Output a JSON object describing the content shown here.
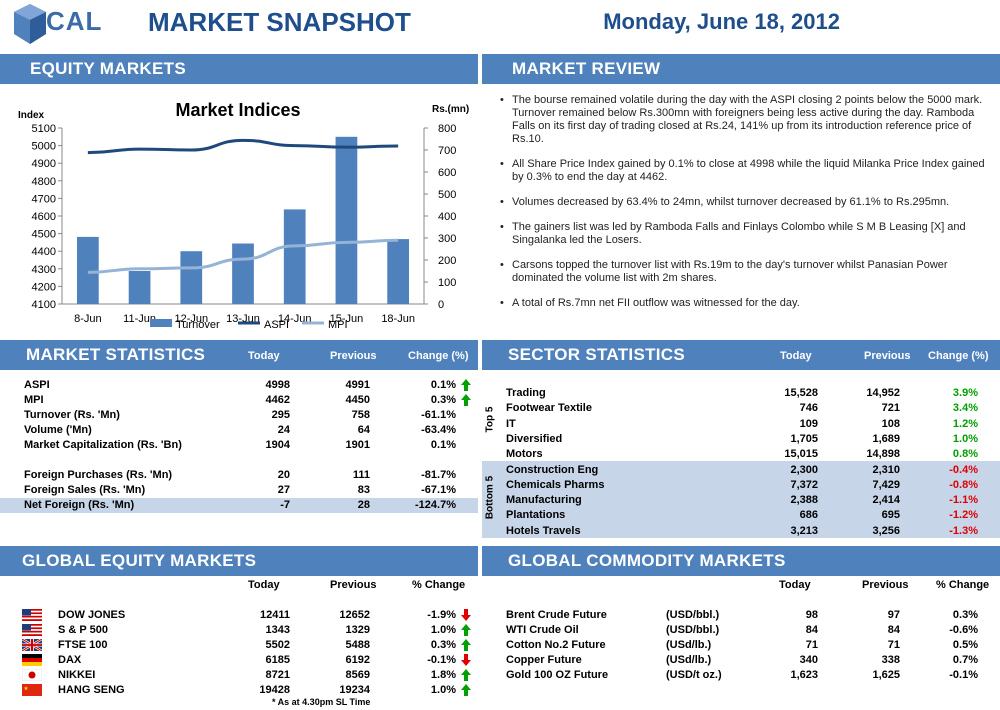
{
  "header": {
    "logo_text": "CAL",
    "title": "MARKET SNAPSHOT",
    "date": "Monday, June 18, 2012"
  },
  "equity_markets": {
    "title": "EQUITY MARKETS"
  },
  "chart_data": {
    "type": "bar",
    "title": "Market Indices",
    "left_axis_label": "Index",
    "right_axis_label": "Rs.(mn)",
    "categories": [
      "8-Jun",
      "11-Jun",
      "12-Jun",
      "13-Jun",
      "14-Jun",
      "15-Jun",
      "18-Jun"
    ],
    "series": [
      {
        "name": "Turnover",
        "type": "bar",
        "axis": "right",
        "color": "#4f81bd",
        "values": [
          305,
          150,
          240,
          275,
          430,
          760,
          295
        ]
      },
      {
        "name": "ASPI",
        "type": "line",
        "axis": "left",
        "color": "#1f497d",
        "values": [
          4960,
          4980,
          4975,
          5030,
          5000,
          4991,
          4998
        ]
      },
      {
        "name": "MPI",
        "type": "line",
        "axis": "left",
        "color": "#95b3d7",
        "values": [
          4280,
          4300,
          4305,
          4355,
          4430,
          4450,
          4462
        ]
      }
    ],
    "left_ylim": [
      4100,
      5100
    ],
    "left_ticks": [
      "4100",
      "4200",
      "4300",
      "4400",
      "4500",
      "4600",
      "4700",
      "4800",
      "4900",
      "5000",
      "5100"
    ],
    "right_ylim": [
      0,
      800
    ],
    "right_ticks": [
      "0",
      "100",
      "200",
      "300",
      "400",
      "500",
      "600",
      "700",
      "800"
    ],
    "legend_position": "bottom",
    "grid": false
  },
  "market_review": {
    "title": "MARKET REVIEW",
    "bullets": [
      "The bourse remained volatile during the day with the ASPI closing 2 points below the 5000 mark. Turnover remained below Rs.300mn with foreigners being less active during the day. Ramboda Falls on its first day of trading closed at Rs.24, 141% up from its introduction reference price of Rs.10.",
      "All Share Price Index gained by 0.1% to close at 4998 while the liquid Milanka Price Index gained by 0.3% to end the day at 4462.",
      "Volumes decreased by 63.4% to 24mn, whilst turnover decreased by 61.1% to Rs.295mn.",
      "The gainers list was led by Ramboda Falls and Finlays Colombo while S M B Leasing [X] and Singalanka led the Losers.",
      "Carsons topped the turnover list with Rs.19m to the day's turnover whilst Panasian Power dominated the volume list with 2m shares.",
      "A total of Rs.7mn net FII outflow was witnessed for the day."
    ]
  },
  "market_statistics": {
    "title": "MARKET STATISTICS",
    "col_today": "Today",
    "col_previous": "Previous",
    "col_change": "Change (%)",
    "rows": [
      {
        "label": "ASPI",
        "today": "4998",
        "previous": "4991",
        "change": "0.1%",
        "dir": "up"
      },
      {
        "label": "MPI",
        "today": "4462",
        "previous": "4450",
        "change": "0.3%",
        "dir": "up"
      },
      {
        "label": "Turnover (Rs. 'Mn)",
        "today": "295",
        "previous": "758",
        "change": "-61.1%",
        "dir": ""
      },
      {
        "label": "Volume ('Mn)",
        "today": "24",
        "previous": "64",
        "change": "-63.4%",
        "dir": ""
      },
      {
        "label": "Market Capitalization (Rs. 'Bn)",
        "today": "1904",
        "previous": "1901",
        "change": "0.1%",
        "dir": ""
      },
      {
        "label": "Foreign Purchases (Rs. 'Mn)",
        "today": "20",
        "previous": "111",
        "change": "-81.7%",
        "dir": ""
      },
      {
        "label": "Foreign Sales (Rs. 'Mn)",
        "today": "27",
        "previous": "83",
        "change": "-67.1%",
        "dir": ""
      },
      {
        "label": "Net Foreign (Rs. 'Mn)",
        "today": "-7",
        "previous": "28",
        "change": "-124.7%",
        "dir": ""
      }
    ]
  },
  "sector_statistics": {
    "title": "SECTOR STATISTICS",
    "col_today": "Today",
    "col_previous": "Previous",
    "col_change": "Change (%)",
    "top_label": "Top 5",
    "bottom_label": "Bottom 5",
    "top": [
      {
        "sector": "Trading",
        "today": "15,528",
        "previous": "14,952",
        "change": "3.9%"
      },
      {
        "sector": "Footwear Textile",
        "today": "746",
        "previous": "721",
        "change": "3.4%"
      },
      {
        "sector": "IT",
        "today": "109",
        "previous": "108",
        "change": "1.2%"
      },
      {
        "sector": "Diversified",
        "today": "1,705",
        "previous": "1,689",
        "change": "1.0%"
      },
      {
        "sector": "Motors",
        "today": "15,015",
        "previous": "14,898",
        "change": "0.8%"
      }
    ],
    "bottom": [
      {
        "sector": "Construction Eng",
        "today": "2,300",
        "previous": "2,310",
        "change": "-0.4%"
      },
      {
        "sector": "Chemicals Pharms",
        "today": "7,372",
        "previous": "7,429",
        "change": "-0.8%"
      },
      {
        "sector": "Manufacturing",
        "today": "2,388",
        "previous": "2,414",
        "change": "-1.1%"
      },
      {
        "sector": "Plantations",
        "today": "686",
        "previous": "695",
        "change": "-1.2%"
      },
      {
        "sector": "Hotels Travels",
        "today": "3,213",
        "previous": "3,256",
        "change": "-1.3%"
      }
    ]
  },
  "global_equity": {
    "title": "GLOBAL EQUITY MARKETS",
    "col_today": "Today",
    "col_previous": "Previous",
    "col_change": "% Change",
    "footnote": "* As at 4.30pm SL Time",
    "rows": [
      {
        "flag": "us-flag-icon",
        "name": "DOW JONES",
        "today": "12411",
        "previous": "12652",
        "change": "-1.9%",
        "dir": "down"
      },
      {
        "flag": "us-flag-icon",
        "name": "S & P 500",
        "today": "1343",
        "previous": "1329",
        "change": "1.0%",
        "dir": "up"
      },
      {
        "flag": "uk-flag-icon",
        "name": "FTSE 100",
        "today": "5502",
        "previous": "5488",
        "change": "0.3%",
        "dir": "up"
      },
      {
        "flag": "germany-flag-icon",
        "name": "DAX",
        "today": "6185",
        "previous": "6192",
        "change": "-0.1%",
        "dir": "down"
      },
      {
        "flag": "japan-flag-icon",
        "name": "NIKKEI",
        "today": "8721",
        "previous": "8569",
        "change": "1.8%",
        "dir": "up"
      },
      {
        "flag": "china-flag-icon",
        "name": "HANG SENG",
        "today": "19428",
        "previous": "19234",
        "change": "1.0%",
        "dir": "up"
      }
    ]
  },
  "global_commodity": {
    "title": "GLOBAL COMMODITY MARKETS",
    "col_today": "Today",
    "col_previous": "Previous",
    "col_change": "% Change",
    "rows": [
      {
        "name": "Brent Crude Future",
        "unit": "(USD/bbl.)",
        "today": "98",
        "previous": "97",
        "change": "0.3%"
      },
      {
        "name": "WTI Crude Oil",
        "unit": "(USD/bbl.)",
        "today": "84",
        "previous": "84",
        "change": "-0.6%"
      },
      {
        "name": "Cotton No.2 Future",
        "unit": "(USd/lb.)",
        "today": "71",
        "previous": "71",
        "change": "0.5%"
      },
      {
        "name": "Copper Future",
        "unit": "(USd/lb.)",
        "today": "340",
        "previous": "338",
        "change": "0.7%"
      },
      {
        "name": "Gold 100 OZ Future",
        "unit": "(USD/t oz.)",
        "today": "1,623",
        "previous": "1,625",
        "change": "-0.1%"
      }
    ]
  },
  "colors": {
    "header_bar": "#4f81bd",
    "title_blue": "#1f4e8c",
    "up_arrow": "#00a000",
    "down_arrow": "#e00000"
  }
}
